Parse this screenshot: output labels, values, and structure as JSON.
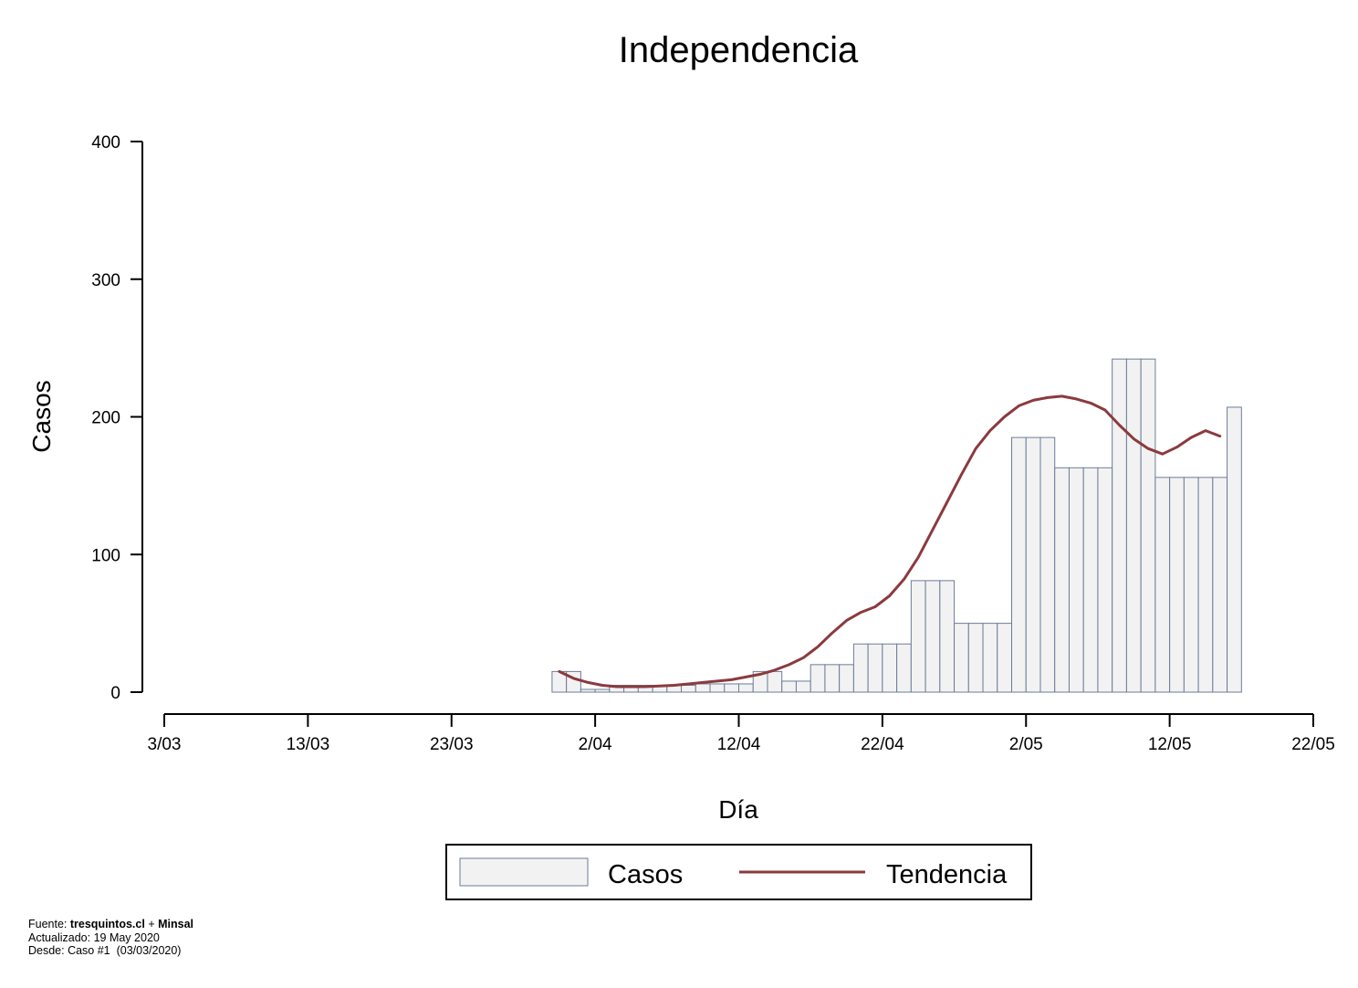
{
  "chart_data": {
    "type": "bar",
    "title": "Independencia",
    "xlabel": "Día",
    "ylabel": "Casos",
    "ylim": [
      0,
      400
    ],
    "yticks": [
      0,
      100,
      200,
      300,
      400
    ],
    "xlim_days": [
      0,
      80
    ],
    "x_ticks": [
      {
        "day": 0,
        "label": "3/03"
      },
      {
        "day": 10,
        "label": "13/03"
      },
      {
        "day": 20,
        "label": "23/03"
      },
      {
        "day": 30,
        "label": "2/04"
      },
      {
        "day": 40,
        "label": "12/04"
      },
      {
        "day": 50,
        "label": "22/04"
      },
      {
        "day": 60,
        "label": "2/05"
      },
      {
        "day": 70,
        "label": "12/05"
      },
      {
        "day": 80,
        "label": "22/05"
      }
    ],
    "grid": false,
    "legend_position": "bottom",
    "series": [
      {
        "name": "Casos",
        "type": "bar",
        "days": [
          27,
          28,
          29,
          30,
          31,
          32,
          33,
          34,
          35,
          36,
          37,
          38,
          39,
          40,
          41,
          42,
          43,
          44,
          45,
          46,
          47,
          48,
          49,
          50,
          51,
          52,
          53,
          54,
          55,
          56,
          57,
          58,
          59,
          60,
          61,
          62,
          63,
          64,
          65,
          66,
          67,
          68,
          69,
          70,
          71,
          72,
          73,
          74
        ],
        "values": [
          15,
          15,
          2,
          2,
          5,
          5,
          5,
          5,
          5,
          5,
          6,
          6,
          6,
          6,
          15,
          15,
          8,
          8,
          20,
          20,
          20,
          35,
          35,
          35,
          35,
          81,
          81,
          81,
          50,
          50,
          50,
          50,
          185,
          185,
          185,
          163,
          163,
          163,
          163,
          242,
          242,
          242,
          156,
          156,
          156,
          156,
          156,
          207
        ],
        "color": "#f2f2f2",
        "edge_color": "#6b7c99"
      },
      {
        "name": "Tendencia",
        "type": "line",
        "days": [
          27.5,
          28.5,
          29.5,
          30.5,
          31.5,
          32.5,
          33.5,
          34.5,
          35.5,
          36.5,
          37.5,
          38.5,
          39.5,
          40.5,
          41.5,
          42.5,
          43.5,
          44.5,
          45.5,
          46.5,
          47.5,
          48.5,
          49.5,
          50.5,
          51.5,
          52.5,
          53.5,
          54.5,
          55.5,
          56.5,
          57.5,
          58.5,
          59.5,
          60.5,
          61.5,
          62.5,
          63.5,
          64.5,
          65.5,
          66.5,
          67.5,
          68.5,
          69.5,
          70.5,
          71.5,
          72.5,
          73.5
        ],
        "values": [
          15,
          10,
          7,
          5,
          4,
          4,
          4,
          4.5,
          5,
          6,
          7,
          8,
          9,
          11,
          13,
          16,
          20,
          25,
          33,
          43,
          52,
          58,
          62,
          70,
          82,
          98,
          118,
          138,
          158,
          177,
          190,
          200,
          208,
          212,
          214,
          215,
          213,
          210,
          205,
          194,
          184,
          177,
          173,
          178,
          185,
          190,
          186
        ],
        "color": "#8b3a3e"
      }
    ]
  },
  "footer": {
    "source_prefix": "Fuente: ",
    "source_site": "tresquintos.cl",
    "source_plus": " + ",
    "source_org": "Minsal",
    "updated": "Actualizado: 19 May 2020",
    "since": "Desde: Caso #1  (03/03/2020)"
  }
}
